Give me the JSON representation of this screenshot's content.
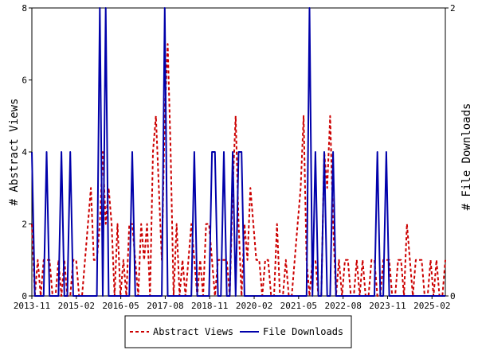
{
  "chart_data": {
    "type": "line",
    "title": "",
    "xlabel": "",
    "ylabel": "# Abstract Views",
    "y2label": "# File Downloads",
    "x_ticks": [
      "2013-11",
      "2015-02",
      "2016-05",
      "2017-08",
      "2018-11",
      "2020-02",
      "2021-05",
      "2022-08",
      "2023-11",
      "2025-02"
    ],
    "ylim": [
      0,
      8
    ],
    "y_ticks": [
      "0",
      "2",
      "4",
      "6",
      "8"
    ],
    "y2lim": [
      0,
      2
    ],
    "y2_ticks": [
      "0",
      "2"
    ],
    "grid": false,
    "legend_position": "bottom",
    "series": [
      {
        "name": "Abstract Views",
        "axis": "left",
        "color": "#cc0000",
        "style": "dashed",
        "values": [
          2,
          0,
          1,
          0,
          1,
          1,
          1,
          0,
          0,
          1,
          0,
          1,
          0,
          0,
          1,
          1,
          0,
          0,
          1,
          2,
          3,
          1,
          1,
          2,
          4,
          2,
          3,
          2,
          0,
          2,
          0,
          1,
          0,
          2,
          2,
          1,
          0,
          2,
          1,
          2,
          0,
          4,
          5,
          3,
          1,
          5,
          7,
          4,
          0,
          2,
          0,
          1,
          0,
          1,
          2,
          1,
          0,
          1,
          0,
          2,
          2,
          1,
          0,
          1,
          1,
          1,
          1,
          0,
          3,
          5,
          2,
          0,
          2,
          1,
          3,
          2,
          1,
          1,
          0,
          1,
          1,
          0,
          0,
          2,
          0,
          0,
          1,
          0,
          0,
          1,
          2,
          3,
          5,
          1,
          0,
          1,
          1,
          0,
          0,
          4,
          3,
          5,
          2,
          0,
          1,
          0,
          1,
          1,
          0,
          0,
          1,
          0,
          1,
          0,
          0,
          1,
          1,
          0,
          0,
          1,
          1,
          1,
          0,
          0,
          1,
          1,
          0,
          2,
          1,
          0,
          1,
          1,
          1,
          0,
          0,
          1,
          0,
          1,
          0,
          0,
          1
        ]
      },
      {
        "name": "File Downloads",
        "axis": "right",
        "color": "#0000aa",
        "style": "solid",
        "values": [
          1,
          0,
          0,
          0,
          0,
          1,
          0,
          0,
          0,
          0,
          1,
          0,
          0,
          1,
          0,
          0,
          0,
          0,
          0,
          0,
          0,
          0,
          0,
          2,
          0,
          2,
          0,
          0,
          0,
          0,
          0,
          0,
          0,
          0,
          1,
          0,
          0,
          0,
          0,
          0,
          0,
          0,
          0,
          0,
          0,
          2,
          0,
          0,
          0,
          0,
          0,
          0,
          0,
          0,
          0,
          1,
          0,
          0,
          0,
          0,
          0,
          1,
          1,
          0,
          0,
          1,
          0,
          0,
          1,
          0,
          1,
          1,
          0,
          0,
          0,
          0,
          0,
          0,
          0,
          0,
          0,
          0,
          0,
          0,
          0,
          0,
          0,
          0,
          0,
          0,
          0,
          0,
          0,
          0,
          2,
          0,
          1,
          0,
          0,
          1,
          0,
          0,
          1,
          0,
          0,
          0,
          0,
          0,
          0,
          0,
          0,
          0,
          0,
          0,
          0,
          0,
          0,
          1,
          0,
          0,
          1,
          0,
          0,
          0,
          0,
          0,
          0,
          0,
          0,
          0,
          0,
          0,
          0,
          0,
          0,
          0,
          0,
          0,
          0,
          0,
          0
        ]
      }
    ]
  }
}
